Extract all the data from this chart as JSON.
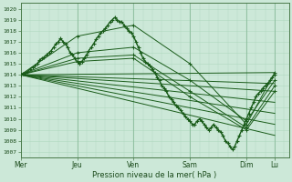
{
  "xlabel": "Pression niveau de la mer( hPa )",
  "bg_color": "#cce8d8",
  "grid_minor_color": "#b0d8c0",
  "grid_major_color": "#88bb99",
  "line_color": "#1a5c1a",
  "ylim": [
    1006.5,
    1020.5
  ],
  "yticks": [
    1007,
    1008,
    1009,
    1010,
    1011,
    1012,
    1013,
    1014,
    1015,
    1016,
    1017,
    1018,
    1019,
    1020
  ],
  "xtick_labels": [
    "Mer",
    "Jeu",
    "Ven",
    "Sam",
    "Dim",
    "Lu"
  ],
  "xtick_pos": [
    0,
    48,
    96,
    144,
    192,
    216
  ],
  "total_hours": 228,
  "forecast_lines": [
    {
      "x": [
        0,
        216
      ],
      "y": [
        1014.0,
        1014.2
      ]
    },
    {
      "x": [
        0,
        216
      ],
      "y": [
        1014.0,
        1013.2
      ]
    },
    {
      "x": [
        0,
        216
      ],
      "y": [
        1014.0,
        1012.5
      ]
    },
    {
      "x": [
        0,
        216
      ],
      "y": [
        1014.0,
        1011.5
      ]
    },
    {
      "x": [
        0,
        216
      ],
      "y": [
        1014.0,
        1010.5
      ]
    },
    {
      "x": [
        0,
        216
      ],
      "y": [
        1014.0,
        1009.5
      ]
    },
    {
      "x": [
        0,
        216
      ],
      "y": [
        1014.0,
        1008.5
      ]
    }
  ],
  "detailed_line_x": [
    0,
    2,
    4,
    6,
    8,
    10,
    12,
    14,
    16,
    18,
    20,
    22,
    24,
    26,
    28,
    30,
    32,
    34,
    36,
    38,
    40,
    42,
    44,
    46,
    48,
    50,
    52,
    54,
    56,
    58,
    60,
    62,
    64,
    66,
    68,
    70,
    72,
    74,
    76,
    78,
    80,
    82,
    84,
    86,
    88,
    90,
    92,
    94,
    96,
    98,
    100,
    102,
    104,
    106,
    108,
    110,
    112,
    114,
    116,
    118,
    120,
    122,
    124,
    126,
    128,
    130,
    132,
    134,
    136,
    138,
    140,
    142,
    144,
    146,
    148,
    150,
    152,
    154,
    156,
    158,
    160,
    162,
    164,
    166,
    168,
    170,
    172,
    174,
    176,
    178,
    180,
    182,
    184,
    186,
    188,
    190,
    192,
    194,
    196,
    198,
    200,
    202,
    204,
    206,
    208,
    210,
    212,
    214,
    216
  ],
  "detailed_line_y": [
    1014.0,
    1014.1,
    1014.2,
    1014.3,
    1014.5,
    1014.7,
    1014.8,
    1015.0,
    1015.3,
    1015.5,
    1015.6,
    1015.8,
    1016.0,
    1016.2,
    1016.5,
    1016.8,
    1017.0,
    1017.3,
    1017.0,
    1016.8,
    1016.5,
    1016.0,
    1015.8,
    1015.5,
    1015.2,
    1015.0,
    1015.2,
    1015.5,
    1015.8,
    1016.2,
    1016.5,
    1016.8,
    1017.2,
    1017.5,
    1017.8,
    1018.0,
    1018.2,
    1018.5,
    1018.8,
    1019.0,
    1019.2,
    1019.0,
    1018.8,
    1018.8,
    1018.5,
    1018.2,
    1018.0,
    1017.8,
    1017.5,
    1017.0,
    1016.5,
    1016.0,
    1015.5,
    1015.2,
    1015.0,
    1014.8,
    1014.5,
    1014.2,
    1013.8,
    1013.5,
    1013.0,
    1012.8,
    1012.5,
    1012.0,
    1011.8,
    1011.5,
    1011.2,
    1011.0,
    1010.8,
    1010.5,
    1010.2,
    1010.0,
    1009.8,
    1009.5,
    1009.5,
    1009.8,
    1010.0,
    1009.8,
    1009.5,
    1009.2,
    1009.0,
    1009.2,
    1009.5,
    1009.2,
    1009.0,
    1008.8,
    1008.5,
    1008.0,
    1007.8,
    1007.5,
    1007.2,
    1007.5,
    1008.0,
    1008.5,
    1009.0,
    1009.5,
    1010.0,
    1010.5,
    1011.0,
    1011.5,
    1012.0,
    1012.3,
    1012.5,
    1012.8,
    1013.0,
    1013.2,
    1013.5,
    1013.8,
    1014.0
  ],
  "extra_lines": [
    {
      "x": [
        0,
        48,
        96,
        144,
        192,
        216
      ],
      "y": [
        1014.0,
        1017.5,
        1018.5,
        1015.0,
        1009.5,
        1014.2
      ]
    },
    {
      "x": [
        0,
        48,
        96,
        144,
        192,
        216
      ],
      "y": [
        1014.0,
        1016.0,
        1016.5,
        1013.5,
        1009.8,
        1013.5
      ]
    },
    {
      "x": [
        0,
        48,
        96,
        144,
        192,
        216
      ],
      "y": [
        1014.0,
        1015.5,
        1015.8,
        1012.5,
        1009.2,
        1013.0
      ]
    },
    {
      "x": [
        0,
        48,
        96,
        144,
        192,
        216
      ],
      "y": [
        1014.0,
        1015.2,
        1015.5,
        1012.0,
        1009.0,
        1012.5
      ]
    }
  ]
}
